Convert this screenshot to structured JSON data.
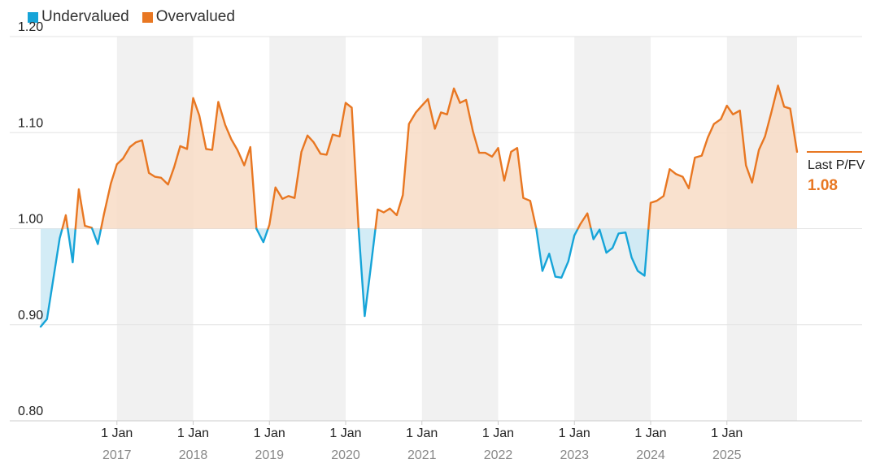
{
  "legend": {
    "items": [
      {
        "label": "Undervalued",
        "color": "#16a4d8"
      },
      {
        "label": "Overvalued",
        "color": "#e87722"
      }
    ]
  },
  "chart_data": {
    "type": "line",
    "baseline": 1.0,
    "ylim": [
      0.8,
      1.2
    ],
    "yticks": [
      "0.80",
      "0.90",
      "1.00",
      "1.10",
      "1.20"
    ],
    "ytick_values": [
      0.8,
      0.9,
      1.0,
      1.1,
      1.2
    ],
    "xlim": [
      2016.08,
      2026.42
    ],
    "x_ticks": [
      {
        "label": "1 Jan",
        "year": "2017",
        "x": 2017
      },
      {
        "label": "1 Jan",
        "year": "2018",
        "x": 2018
      },
      {
        "label": "1 Jan",
        "year": "2019",
        "x": 2019
      },
      {
        "label": "1 Jan",
        "year": "2020",
        "x": 2020
      },
      {
        "label": "1 Jan",
        "year": "2021",
        "x": 2021
      },
      {
        "label": "1 Jan",
        "year": "2022",
        "x": 2022
      },
      {
        "label": "1 Jan",
        "year": "2023",
        "x": 2023
      },
      {
        "label": "1 Jan",
        "year": "2024",
        "x": 2024
      },
      {
        "label": "1 Jan",
        "year": "2025",
        "x": 2025
      }
    ],
    "shaded_years": [
      [
        2017,
        2018
      ],
      [
        2019,
        2020
      ],
      [
        2021,
        2022
      ],
      [
        2023,
        2024
      ],
      [
        2025,
        2025.99
      ]
    ],
    "colors": {
      "under": "#16a4d8",
      "over": "#e87722",
      "under_fill": "#cbe9f5",
      "over_fill": "#f8dcc6",
      "band": "#f1f1f1"
    },
    "last": {
      "label": "Last P/FV",
      "value": "1.08"
    },
    "x": [
      2016.0,
      2016.083,
      2016.25,
      2016.33,
      2016.42,
      2016.5,
      2016.58,
      2016.67,
      2016.75,
      2016.83,
      2016.92,
      2017.0,
      2017.08,
      2017.17,
      2017.25,
      2017.33,
      2017.42,
      2017.5,
      2017.58,
      2017.67,
      2017.75,
      2017.83,
      2017.92,
      2018.0,
      2018.08,
      2018.17,
      2018.25,
      2018.33,
      2018.42,
      2018.5,
      2018.58,
      2018.67,
      2018.75,
      2018.83,
      2018.92,
      2019.0,
      2019.08,
      2019.17,
      2019.25,
      2019.33,
      2019.42,
      2019.5,
      2019.58,
      2019.67,
      2019.75,
      2019.83,
      2019.92,
      2020.0,
      2020.08,
      2020.17,
      2020.25,
      2020.33,
      2020.42,
      2020.5,
      2020.58,
      2020.67,
      2020.75,
      2020.83,
      2020.92,
      2021.0,
      2021.08,
      2021.17,
      2021.25,
      2021.33,
      2021.42,
      2021.5,
      2021.58,
      2021.67,
      2021.75,
      2021.83,
      2021.92,
      2022.0,
      2022.08,
      2022.17,
      2022.25,
      2022.33,
      2022.42,
      2022.5,
      2022.58,
      2022.67,
      2022.75,
      2022.83,
      2022.92,
      2023.0,
      2023.08,
      2023.17,
      2023.25,
      2023.33,
      2023.42,
      2023.5,
      2023.58,
      2023.67,
      2023.75,
      2023.83,
      2023.92,
      2024.0,
      2024.08,
      2024.17,
      2024.25,
      2024.33,
      2024.42,
      2024.5,
      2024.58,
      2024.67,
      2024.75,
      2024.83,
      2024.92,
      2025.0,
      2025.08,
      2025.17,
      2025.25,
      2025.33,
      2025.42,
      2025.5,
      2025.58,
      2025.67,
      2025.75,
      2025.83,
      2025.92
    ],
    "y": [
      0.898,
      0.906,
      0.99,
      1.014,
      0.965,
      1.041,
      1.003,
      1.001,
      0.984,
      1.015,
      1.047,
      1.067,
      1.073,
      1.085,
      1.09,
      1.092,
      1.058,
      1.054,
      1.053,
      1.046,
      1.064,
      1.086,
      1.083,
      1.136,
      1.118,
      1.083,
      1.082,
      1.132,
      1.108,
      1.093,
      1.082,
      1.066,
      1.085,
      1.0,
      0.986,
      1.004,
      1.043,
      1.031,
      1.034,
      1.032,
      1.08,
      1.097,
      1.09,
      1.078,
      1.077,
      1.098,
      1.096,
      1.131,
      1.126,
      1.0,
      0.909,
      0.96,
      1.02,
      1.017,
      1.021,
      1.014,
      1.035,
      1.109,
      1.121,
      1.128,
      1.135,
      1.104,
      1.121,
      1.119,
      1.146,
      1.131,
      1.134,
      1.101,
      1.079,
      1.079,
      1.075,
      1.084,
      1.05,
      1.08,
      1.084,
      1.032,
      1.029,
      1.0,
      0.956,
      0.974,
      0.95,
      0.949,
      0.966,
      0.993,
      1.005,
      1.016,
      0.989,
      0.999,
      0.975,
      0.98,
      0.995,
      0.996,
      0.97,
      0.956,
      0.951,
      1.027,
      1.029,
      1.034,
      1.062,
      1.057,
      1.054,
      1.042,
      1.074,
      1.076,
      1.095,
      1.109,
      1.114,
      1.128,
      1.119,
      1.123,
      1.066,
      1.048,
      1.082,
      1.096,
      1.12,
      1.149,
      1.127,
      1.125,
      1.08
    ]
  }
}
